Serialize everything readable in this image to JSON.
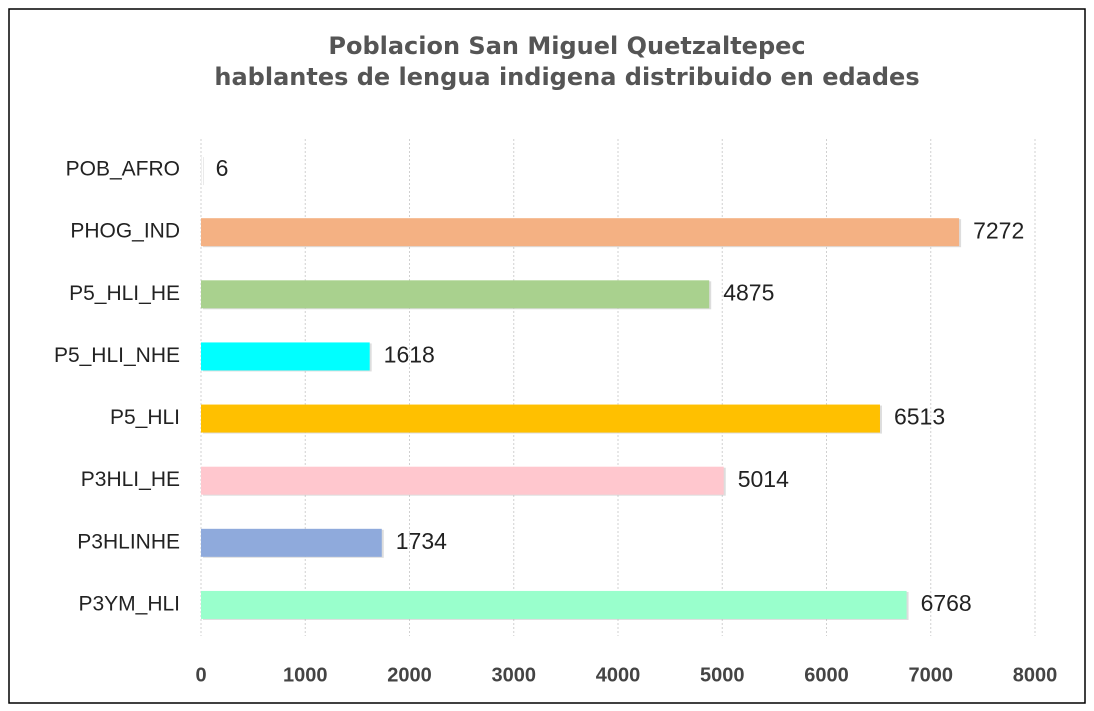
{
  "chart_data": {
    "type": "bar",
    "orientation": "horizontal",
    "title": [
      "Poblacion San Miguel Quetzaltepec",
      "hablantes de lengua indigena distribuido en edades"
    ],
    "categories": [
      "POB_AFRO",
      "PHOG_IND",
      "P5_HLI_HE",
      "P5_HLI_NHE",
      "P5_HLI",
      "P3HLI_HE",
      "P3HLINHE",
      "P3YM_HLI"
    ],
    "values": [
      6,
      7272,
      4875,
      1618,
      6513,
      5014,
      1734,
      6768
    ],
    "colors": [
      "#e6e6e6",
      "#f4b183",
      "#a9d18e",
      "#00ffff",
      "#ffc000",
      "#ffc7ce",
      "#8faadc",
      "#99ffcc"
    ],
    "xlim": [
      0,
      8000
    ],
    "xticks": [
      0,
      1000,
      2000,
      3000,
      4000,
      5000,
      6000,
      7000,
      8000
    ],
    "grid": true
  }
}
